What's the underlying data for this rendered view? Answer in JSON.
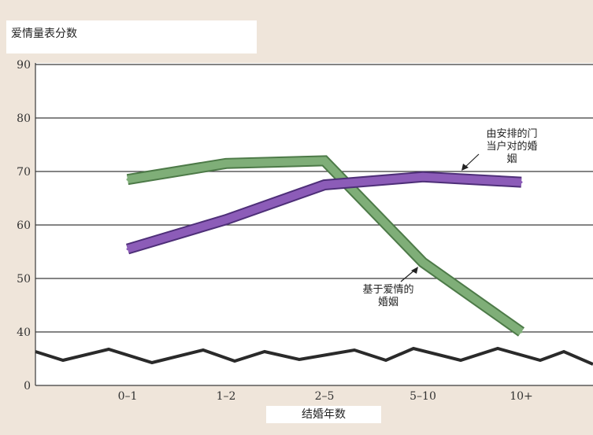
{
  "chart_data": {
    "type": "line",
    "title": "",
    "ylabel": "爱情量表分数",
    "xlabel": "结婚年数",
    "ylim": [
      0,
      90
    ],
    "yticks": [
      "0",
      "40",
      "50",
      "60",
      "70",
      "80",
      "90"
    ],
    "categories": [
      "0–1",
      "1–2",
      "2–5",
      "5–10",
      "10+"
    ],
    "grid": true,
    "series": [
      {
        "name": "基于爱情的婚姻",
        "color": "#7fae78",
        "values": [
          68.5,
          71.5,
          72,
          53,
          40
        ]
      },
      {
        "name": "由安排的门当户对的婚姻",
        "color": "#8c5cb8",
        "values": [
          55.5,
          61,
          67.5,
          69,
          68
        ]
      }
    ],
    "annotations": [
      {
        "lines": [
          "由安排的门",
          "当户对的婚",
          "姻"
        ],
        "series": "由安排的门当户对的婚姻"
      },
      {
        "lines": [
          "基于爱情的",
          "婚姻"
        ],
        "series": "基于爱情的婚姻"
      }
    ]
  }
}
